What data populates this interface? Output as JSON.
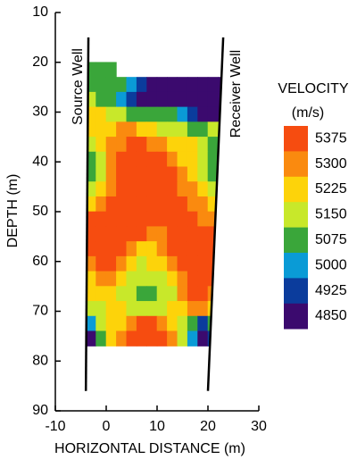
{
  "chart_data": {
    "type": "contour",
    "xlabel": "HORIZONTAL  DISTANCE (m)",
    "ylabel": "DEPTH (m)",
    "xlim": [
      -10,
      30
    ],
    "xticks": [
      -10,
      0,
      10,
      20,
      30
    ],
    "ylim": [
      90,
      10
    ],
    "yticks": [
      10,
      20,
      30,
      40,
      50,
      60,
      70,
      80,
      90
    ],
    "colorbar_title": "VELOCITY",
    "colorbar_unit": "(m/s)",
    "levels": [
      5375,
      5300,
      5225,
      5150,
      5075,
      5000,
      4925,
      4850
    ],
    "colors": [
      "#f64c10",
      "#fa8a0f",
      "#fdd30a",
      "#c8e82a",
      "#3aa63a",
      "#0a9bd6",
      "#0b3c9c",
      "#3b0a6e"
    ],
    "wells": [
      {
        "name": "Source Well",
        "x": [
          -3.5,
          -4
        ],
        "depth": [
          15,
          86
        ]
      },
      {
        "name": "Receiver Well",
        "x": [
          23,
          20
        ],
        "depth": [
          15,
          86
        ]
      }
    ],
    "x": [
      -3,
      -1,
      1,
      3,
      5,
      7,
      9,
      11,
      13,
      15,
      17,
      19,
      21,
      23
    ],
    "y": [
      21.5,
      24.5,
      27.5,
      30.5,
      33.5,
      36.5,
      39.5,
      42.5,
      45.5,
      48.5,
      51.5,
      54.5,
      57.5,
      60.5,
      63.5,
      66.5,
      69.5,
      72.5,
      75.5
    ],
    "z": [
      [
        5075,
        5075,
        5075,
        null,
        null,
        null,
        null,
        null,
        null,
        null,
        null,
        null,
        null,
        null
      ],
      [
        5075,
        5075,
        5075,
        5075,
        5000,
        4925,
        4850,
        4850,
        4850,
        4850,
        4850,
        4850,
        4850,
        4850
      ],
      [
        5150,
        5075,
        5075,
        5000,
        4925,
        4850,
        4850,
        4850,
        4850,
        4850,
        4850,
        4850,
        4850,
        4850
      ],
      [
        5225,
        5225,
        5150,
        5150,
        5075,
        5075,
        5075,
        5075,
        5075,
        5000,
        4925,
        4850,
        4850,
        4850
      ],
      [
        5225,
        5225,
        5225,
        5300,
        5300,
        5225,
        5225,
        5150,
        5150,
        5150,
        5075,
        5075,
        5150,
        5150
      ],
      [
        5150,
        5225,
        5300,
        5300,
        5375,
        5375,
        5300,
        5300,
        5225,
        5225,
        5225,
        5150,
        5075,
        5075
      ],
      [
        5075,
        5150,
        5300,
        5375,
        5375,
        5375,
        5375,
        5375,
        5300,
        5225,
        5225,
        5150,
        5075,
        5075
      ],
      [
        5075,
        5150,
        5300,
        5375,
        5375,
        5375,
        5375,
        5375,
        5375,
        5300,
        5225,
        5150,
        5075,
        5150
      ],
      [
        5150,
        5225,
        5300,
        5375,
        5375,
        5375,
        5375,
        5375,
        5375,
        5300,
        5300,
        5225,
        5150,
        5150
      ],
      [
        5225,
        5300,
        5375,
        5375,
        5375,
        5375,
        5375,
        5375,
        5375,
        5375,
        5300,
        5300,
        5225,
        5225
      ],
      [
        5375,
        5375,
        5375,
        5375,
        5375,
        5375,
        5375,
        5375,
        5375,
        5375,
        5375,
        5300,
        5300,
        5300
      ],
      [
        5375,
        5375,
        5375,
        5375,
        5375,
        5375,
        5300,
        5300,
        5375,
        5375,
        5375,
        5375,
        5375,
        5375
      ],
      [
        5375,
        5375,
        5375,
        5375,
        5300,
        5225,
        5225,
        5300,
        5375,
        5375,
        5375,
        5375,
        5375,
        5375
      ],
      [
        5300,
        5375,
        5375,
        5300,
        5225,
        5150,
        5225,
        5225,
        5300,
        5375,
        5375,
        5375,
        5375,
        5375
      ],
      [
        5225,
        5300,
        5300,
        5225,
        5150,
        5150,
        5150,
        5150,
        5225,
        5300,
        5375,
        5375,
        5375,
        5375
      ],
      [
        5225,
        5225,
        5225,
        5150,
        5150,
        5075,
        5075,
        5150,
        5150,
        5300,
        5375,
        5375,
        5300,
        5300
      ],
      [
        5150,
        5150,
        5225,
        5225,
        5150,
        5150,
        5150,
        5150,
        5225,
        5225,
        5300,
        5300,
        5225,
        5225
      ],
      [
        5000,
        5150,
        5225,
        5225,
        5300,
        5375,
        5375,
        5300,
        5225,
        5150,
        5075,
        4925,
        5075,
        5150
      ],
      [
        4850,
        5075,
        5225,
        5300,
        5375,
        5375,
        5375,
        5375,
        5300,
        5150,
        5000,
        4850,
        4925,
        5075
      ]
    ]
  }
}
